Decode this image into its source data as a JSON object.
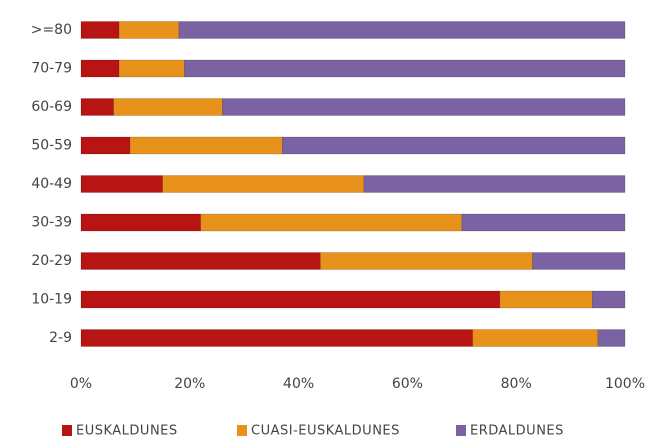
{
  "chart_data": {
    "type": "stacked-horizontal-bar",
    "categories": [
      ">=80",
      "70-79",
      "60-69",
      "50-59",
      "40-49",
      "30-39",
      "20-29",
      "10-19",
      "2-9"
    ],
    "series": [
      {
        "name": "EUSKALDUNES",
        "color": "#b81414",
        "values": [
          7,
          7,
          6,
          9,
          15,
          22,
          44,
          77,
          72
        ]
      },
      {
        "name": "CUASI-EUSKALDUNES",
        "color": "#e8921c",
        "values": [
          11,
          12,
          20,
          28,
          37,
          48,
          39,
          17,
          23
        ]
      },
      {
        "name": "ERDALDUNES",
        "color": "#7b62a3",
        "values": [
          82,
          81,
          74,
          63,
          48,
          30,
          17,
          6,
          5
        ]
      }
    ],
    "xlim": [
      0,
      100
    ],
    "xticks": [
      {
        "value": 0,
        "label": "0%"
      },
      {
        "value": 20,
        "label": "20%"
      },
      {
        "value": 40,
        "label": "40%"
      },
      {
        "value": 60,
        "label": "60%"
      },
      {
        "value": 80,
        "label": "80%"
      },
      {
        "value": 100,
        "label": "100%"
      }
    ],
    "legend": "bottom"
  }
}
